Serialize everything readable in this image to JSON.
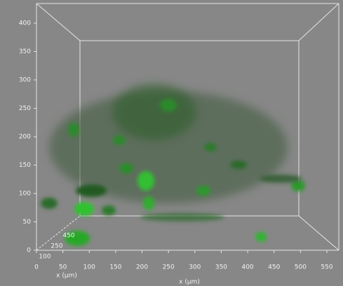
{
  "axes": {
    "y_ticks": [
      "0",
      "50",
      "100",
      "150",
      "200",
      "250",
      "300",
      "350",
      "400"
    ],
    "x_ticks": [
      "0",
      "50",
      "100",
      "150",
      "200",
      "250",
      "300",
      "350",
      "400",
      "450",
      "500",
      "550"
    ],
    "z_ticks": [
      "100",
      "250",
      "450"
    ],
    "depth_label": "x (µm)",
    "x_label": "x (µm)"
  }
}
